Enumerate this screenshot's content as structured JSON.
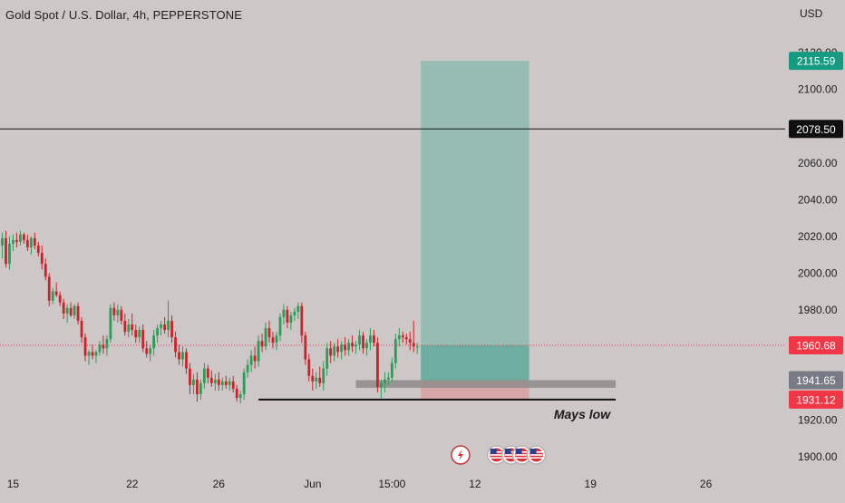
{
  "header": {
    "title": "Gold Spot / U.S. Dollar, 4h, PEPPERSTONE",
    "currency": "USD"
  },
  "colors": {
    "background": "#cdc7c7",
    "bull": "#2a9d58",
    "bear": "#d02028",
    "profit_zone": "#97bcb3",
    "profit_zone_inner": "#6daea0",
    "loss_zone": "#d9a6a7",
    "resistance_line": "#111111",
    "current_price_tag": "#f23645",
    "target_tag": "#159b80",
    "level_tag": "#111111",
    "grey_tag": "#787b86",
    "grey_zone": "#8f8b8b"
  },
  "chart_data": {
    "type": "candlestick",
    "title": "Gold Spot / U.S. Dollar, 4h, PEPPERSTONE",
    "ylabel": "USD",
    "ylim": [
      1895,
      2128
    ],
    "y_ticks": [
      "2120.00",
      "2100.00",
      "2080.00",
      "2060.00",
      "2040.00",
      "2020.00",
      "2000.00",
      "1980.00",
      "1960.00",
      "1940.00",
      "1920.00",
      "1900.00"
    ],
    "y_tick_values": [
      2120,
      2100,
      2080,
      2060,
      2040,
      2020,
      2000,
      1980,
      1960,
      1940,
      1920,
      1900
    ],
    "x_ticks": [
      {
        "label": "15",
        "bar": 3
      },
      {
        "label": "22",
        "bar": 36
      },
      {
        "label": "26",
        "bar": 60
      },
      {
        "label": "Jun",
        "bar": 86
      },
      {
        "label": "15:00",
        "bar": 108
      },
      {
        "label": "12",
        "bar": 131
      },
      {
        "label": "19",
        "bar": 163
      },
      {
        "label": "26",
        "bar": 195
      }
    ],
    "candles": [
      [
        2015,
        2022,
        2008,
        2019
      ],
      [
        2019,
        2023,
        2003,
        2005
      ],
      [
        2005,
        2020,
        2002,
        2016
      ],
      [
        2016,
        2021,
        2012,
        2018
      ],
      [
        2018,
        2022,
        2014,
        2017
      ],
      [
        2017,
        2023,
        2015,
        2021
      ],
      [
        2021,
        2022,
        2016,
        2018
      ],
      [
        2018,
        2021,
        2012,
        2014
      ],
      [
        2014,
        2020,
        2010,
        2019
      ],
      [
        2019,
        2022,
        2013,
        2015
      ],
      [
        2015,
        2017,
        2009,
        2011
      ],
      [
        2011,
        2015,
        2002,
        2005
      ],
      [
        2005,
        2008,
        1996,
        1998
      ],
      [
        1998,
        2000,
        1982,
        1985
      ],
      [
        1985,
        1992,
        1983,
        1990
      ],
      [
        1990,
        1995,
        1987,
        1988
      ],
      [
        1988,
        1990,
        1982,
        1984
      ],
      [
        1984,
        1986,
        1975,
        1978
      ],
      [
        1978,
        1983,
        1973,
        1981
      ],
      [
        1981,
        1984,
        1976,
        1977
      ],
      [
        1977,
        1983,
        1975,
        1982
      ],
      [
        1982,
        1984,
        1972,
        1974
      ],
      [
        1974,
        1976,
        1962,
        1965
      ],
      [
        1965,
        1967,
        1952,
        1955
      ],
      [
        1955,
        1958,
        1950,
        1957
      ],
      [
        1957,
        1961,
        1953,
        1955
      ],
      [
        1955,
        1958,
        1951,
        1957
      ],
      [
        1957,
        1963,
        1955,
        1961
      ],
      [
        1961,
        1966,
        1956,
        1959
      ],
      [
        1959,
        1966,
        1955,
        1964
      ],
      [
        1964,
        1983,
        1962,
        1981
      ],
      [
        1981,
        1984,
        1974,
        1977
      ],
      [
        1977,
        1983,
        1973,
        1980
      ],
      [
        1980,
        1982,
        1972,
        1974
      ],
      [
        1974,
        1978,
        1966,
        1968
      ],
      [
        1968,
        1975,
        1965,
        1972
      ],
      [
        1972,
        1978,
        1966,
        1969
      ],
      [
        1969,
        1972,
        1962,
        1965
      ],
      [
        1965,
        1971,
        1962,
        1969
      ],
      [
        1969,
        1972,
        1957,
        1959
      ],
      [
        1959,
        1963,
        1954,
        1956
      ],
      [
        1956,
        1961,
        1952,
        1959
      ],
      [
        1959,
        1969,
        1955,
        1966
      ],
      [
        1966,
        1972,
        1962,
        1970
      ],
      [
        1970,
        1974,
        1966,
        1972
      ],
      [
        1972,
        1976,
        1967,
        1969
      ],
      [
        1969,
        1985,
        1965,
        1974
      ],
      [
        1974,
        1977,
        1962,
        1965
      ],
      [
        1965,
        1968,
        1954,
        1957
      ],
      [
        1957,
        1961,
        1950,
        1953
      ],
      [
        1953,
        1960,
        1949,
        1957
      ],
      [
        1957,
        1959,
        1945,
        1948
      ],
      [
        1948,
        1951,
        1934,
        1939
      ],
      [
        1939,
        1945,
        1934,
        1942
      ],
      [
        1942,
        1946,
        1930,
        1934
      ],
      [
        1934,
        1942,
        1931,
        1940
      ],
      [
        1940,
        1951,
        1937,
        1948
      ],
      [
        1948,
        1950,
        1940,
        1943
      ],
      [
        1943,
        1947,
        1938,
        1940
      ],
      [
        1940,
        1945,
        1936,
        1942
      ],
      [
        1942,
        1946,
        1936,
        1939
      ],
      [
        1939,
        1943,
        1936,
        1941
      ],
      [
        1941,
        1944,
        1937,
        1939
      ],
      [
        1939,
        1943,
        1936,
        1941
      ],
      [
        1941,
        1944,
        1935,
        1937
      ],
      [
        1937,
        1939,
        1930,
        1932
      ],
      [
        1932,
        1936,
        1929,
        1934
      ],
      [
        1934,
        1948,
        1931,
        1946
      ],
      [
        1946,
        1953,
        1943,
        1950
      ],
      [
        1950,
        1958,
        1946,
        1955
      ],
      [
        1955,
        1960,
        1948,
        1952
      ],
      [
        1952,
        1966,
        1949,
        1963
      ],
      [
        1963,
        1967,
        1957,
        1960
      ],
      [
        1960,
        1973,
        1958,
        1970
      ],
      [
        1970,
        1974,
        1962,
        1965
      ],
      [
        1965,
        1968,
        1959,
        1962
      ],
      [
        1962,
        1968,
        1958,
        1966
      ],
      [
        1966,
        1978,
        1963,
        1976
      ],
      [
        1976,
        1983,
        1972,
        1980
      ],
      [
        1980,
        1982,
        1970,
        1973
      ],
      [
        1973,
        1979,
        1969,
        1977
      ],
      [
        1977,
        1981,
        1974,
        1979
      ],
      [
        1979,
        1984,
        1975,
        1982
      ],
      [
        1982,
        1984,
        1962,
        1966
      ],
      [
        1966,
        1968,
        1950,
        1953
      ],
      [
        1953,
        1956,
        1941,
        1944
      ],
      [
        1944,
        1948,
        1936,
        1941
      ],
      [
        1941,
        1946,
        1937,
        1943
      ],
      [
        1943,
        1949,
        1938,
        1940
      ],
      [
        1940,
        1952,
        1936,
        1948
      ],
      [
        1948,
        1962,
        1944,
        1959
      ],
      [
        1959,
        1963,
        1951,
        1955
      ],
      [
        1955,
        1962,
        1952,
        1960
      ],
      [
        1960,
        1964,
        1954,
        1957
      ],
      [
        1957,
        1963,
        1953,
        1961
      ],
      [
        1961,
        1965,
        1955,
        1958
      ],
      [
        1958,
        1964,
        1955,
        1962
      ],
      [
        1962,
        1966,
        1957,
        1960
      ],
      [
        1960,
        1963,
        1956,
        1961
      ],
      [
        1961,
        1969,
        1958,
        1966
      ],
      [
        1966,
        1968,
        1956,
        1959
      ],
      [
        1959,
        1964,
        1955,
        1962
      ],
      [
        1962,
        1970,
        1958,
        1966
      ],
      [
        1966,
        1969,
        1960,
        1962
      ],
      [
        1962,
        1965,
        1935,
        1938
      ],
      [
        1938,
        1942,
        1932,
        1940
      ],
      [
        1940,
        1946,
        1935,
        1942
      ],
      [
        1942,
        1946,
        1939,
        1943
      ],
      [
        1943,
        1954,
        1941,
        1951
      ],
      [
        1951,
        1967,
        1948,
        1964
      ],
      [
        1964,
        1970,
        1960,
        1966
      ],
      [
        1966,
        1968,
        1962,
        1965
      ],
      [
        1965,
        1967,
        1961,
        1964
      ],
      [
        1964,
        1968,
        1958,
        1962
      ],
      [
        1962,
        1974,
        1957,
        1960
      ],
      [
        1960,
        1962,
        1956,
        1960
      ]
    ],
    "current_price": 1960.68,
    "annotations": [
      {
        "label": "2115.59",
        "value": 2115.59,
        "role": "target"
      },
      {
        "label": "2078.50",
        "value": 2078.5,
        "role": "horizontal-line"
      },
      {
        "label": "1960.68",
        "value": 1960.68,
        "role": "current-price"
      },
      {
        "label": "1941.65",
        "value": 1941.65,
        "role": "grey-level"
      },
      {
        "label": "1931.12",
        "value": 1931.12,
        "role": "stop"
      }
    ],
    "long_position": {
      "entry": 1941.65,
      "target": 2115.59,
      "stop": 1931.12,
      "start_bar": 116,
      "end_bar": 146
    },
    "grey_zone": {
      "top": 1941.65,
      "bottom": 1937.5,
      "start_bar": 98,
      "end_bar": 170
    },
    "support_line": {
      "value": 1931.12,
      "start_bar": 71,
      "end_bar": 170
    },
    "support_label": "Mays low",
    "event_icon_bars": [
      127,
      137,
      141,
      144,
      148
    ]
  }
}
